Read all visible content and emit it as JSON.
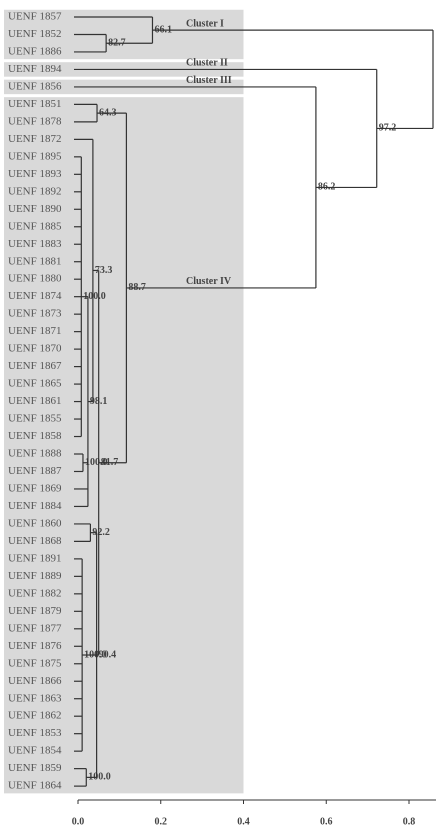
{
  "chart_data": {
    "type": "dendrogram",
    "xlim": [
      0,
      0.858
    ],
    "xticks": [
      {
        "value": 0,
        "label": "0.0"
      },
      {
        "value": 0.2,
        "label": "0.2"
      },
      {
        "value": 0.4,
        "label": "0.4"
      },
      {
        "value": 0.6,
        "label": "0.6"
      },
      {
        "value": 0.8,
        "label": "0.8"
      }
    ],
    "shade_to": 0.4,
    "tree": {
      "height": 0.858,
      "children": [
        {
          "height": 0.18,
          "support": "66.1",
          "cluster": "Cluster I",
          "children": [
            {
              "name": "UENF 1857"
            },
            {
              "height": 0.068,
              "support": "82.7",
              "children": [
                {
                  "name": "UENF 1852"
                },
                {
                  "name": "UENF 1886"
                }
              ]
            }
          ]
        },
        {
          "height": 0.722,
          "support": "97.2",
          "children": [
            {
              "name": "UENF 1894",
              "cluster": "Cluster II"
            },
            {
              "height": 0.575,
              "support": "86.2",
              "children": [
                {
                  "name": "UENF 1856",
                  "cluster": "Cluster III"
                },
                {
                  "height": 0.117,
                  "support": "88.7",
                  "cluster": "Cluster IV",
                  "children": [
                    {
                      "height": 0.046,
                      "support": "64.3",
                      "children": [
                        {
                          "name": "UENF 1851"
                        },
                        {
                          "name": "UENF 1878"
                        }
                      ]
                    },
                    {
                      "height": 0.05,
                      "support": "81.7",
                      "children": [
                        {
                          "height": 0.036,
                          "support": "73.3",
                          "children": [
                            {
                              "name": "UENF 1872"
                            },
                            {
                              "height": 0.024,
                              "support": "98.1",
                              "children": [
                                {
                                  "height": 0.008,
                                  "support": "100.0",
                                  "children": [
                                    {
                                      "name": "UENF 1895"
                                    },
                                    {
                                      "name": "UENF 1893"
                                    },
                                    {
                                      "name": "UENF 1892"
                                    },
                                    {
                                      "name": "UENF 1890"
                                    },
                                    {
                                      "name": "UENF 1885"
                                    },
                                    {
                                      "name": "UENF 1883"
                                    },
                                    {
                                      "name": "UENF 1881"
                                    },
                                    {
                                      "name": "UENF 1880"
                                    },
                                    {
                                      "name": "UENF 1874"
                                    },
                                    {
                                      "name": "UENF 1873"
                                    },
                                    {
                                      "name": "UENF 1871"
                                    },
                                    {
                                      "name": "UENF 1870"
                                    },
                                    {
                                      "name": "UENF 1867"
                                    },
                                    {
                                      "name": "UENF 1865"
                                    },
                                    {
                                      "name": "UENF 1861"
                                    },
                                    {
                                      "name": "UENF 1855"
                                    },
                                    {
                                      "name": "UENF 1858"
                                    }
                                  ]
                                },
                                {
                                  "height": 0.012,
                                  "support": "100.0",
                                  "children": [
                                    {
                                      "name": "UENF 1888"
                                    },
                                    {
                                      "name": "UENF 1887"
                                    }
                                  ]
                                },
                                {
                                  "name": "UENF 1869"
                                },
                                {
                                  "name": "UENF 1884"
                                }
                              ]
                            }
                          ]
                        },
                        {
                          "height": 0.045,
                          "support": "90.4",
                          "children": [
                            {
                              "height": 0.03,
                              "support": "92.2",
                              "children": [
                                {
                                  "name": "UENF 1860"
                                },
                                {
                                  "name": "UENF 1868"
                                }
                              ]
                            },
                            {
                              "height": 0.01,
                              "support": "100.0",
                              "children": [
                                {
                                  "name": "UENF 1891"
                                },
                                {
                                  "name": "UENF 1889"
                                },
                                {
                                  "name": "UENF 1882"
                                },
                                {
                                  "name": "UENF 1879"
                                },
                                {
                                  "name": "UENF 1877"
                                },
                                {
                                  "name": "UENF 1876"
                                },
                                {
                                  "name": "UENF 1875"
                                },
                                {
                                  "name": "UENF 1866"
                                },
                                {
                                  "name": "UENF 1863"
                                },
                                {
                                  "name": "UENF 1862"
                                },
                                {
                                  "name": "UENF 1853"
                                },
                                {
                                  "name": "UENF 1854"
                                }
                              ]
                            },
                            {
                              "height": 0.02,
                              "support": "100.0",
                              "children": [
                                {
                                  "name": "UENF 1859"
                                },
                                {
                                  "name": "UENF 1864"
                                }
                              ]
                            }
                          ]
                        }
                      ]
                    }
                  ]
                }
              ]
            }
          ]
        }
      ]
    }
  }
}
